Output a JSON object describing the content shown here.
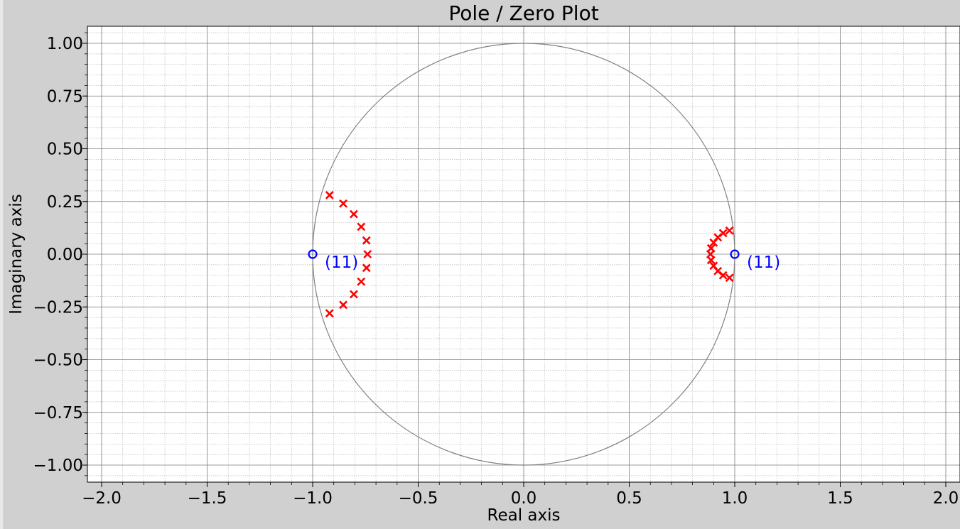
{
  "colors": {
    "pole": "#ff0000",
    "zero": "#0000ff",
    "unit_circle": "#808080",
    "plot_background": "#ffffff",
    "window_background": "#d0d0d0"
  },
  "chart_data": {
    "type": "scatter",
    "title": "Pole / Zero Plot",
    "xlabel": "Real axis",
    "ylabel": "Imaginary axis",
    "xlim": [
      -2.05,
      2.05
    ],
    "ylim": [
      -1.08,
      1.08
    ],
    "x_ticks": [
      "−2.0",
      "−1.5",
      "−1.0",
      "−0.5",
      "0.0",
      "0.5",
      "1.0",
      "1.5",
      "2.0"
    ],
    "x_tick_values": [
      -2.0,
      -1.5,
      -1.0,
      -0.5,
      0.0,
      0.5,
      1.0,
      1.5,
      2.0
    ],
    "y_ticks": [
      "1.00",
      "0.75",
      "0.50",
      "0.25",
      "0.00",
      "−0.25",
      "−0.50",
      "−0.75",
      "−1.00"
    ],
    "y_tick_values": [
      1.0,
      0.75,
      0.5,
      0.25,
      0.0,
      -0.25,
      -0.5,
      -0.75,
      -1.0
    ],
    "grid": true,
    "unit_circle": true,
    "poles": [
      [
        -0.92,
        0.28
      ],
      [
        -0.855,
        0.24
      ],
      [
        -0.805,
        0.19
      ],
      [
        -0.77,
        0.13
      ],
      [
        -0.745,
        0.065
      ],
      [
        -0.74,
        0.0
      ],
      [
        -0.745,
        -0.065
      ],
      [
        -0.77,
        -0.13
      ],
      [
        -0.805,
        -0.19
      ],
      [
        -0.855,
        -0.24
      ],
      [
        -0.92,
        -0.28
      ],
      [
        0.975,
        0.112
      ],
      [
        0.945,
        0.1
      ],
      [
        0.92,
        0.08
      ],
      [
        0.9,
        0.055
      ],
      [
        0.888,
        0.028
      ],
      [
        0.885,
        0.0
      ],
      [
        0.888,
        -0.028
      ],
      [
        0.9,
        -0.055
      ],
      [
        0.92,
        -0.08
      ],
      [
        0.945,
        -0.1
      ],
      [
        0.975,
        -0.112
      ]
    ],
    "zeros": [
      {
        "x": -1.0,
        "y": 0.0,
        "label": "(11)"
      },
      {
        "x": 1.0,
        "y": 0.0,
        "label": "(11)"
      }
    ]
  }
}
